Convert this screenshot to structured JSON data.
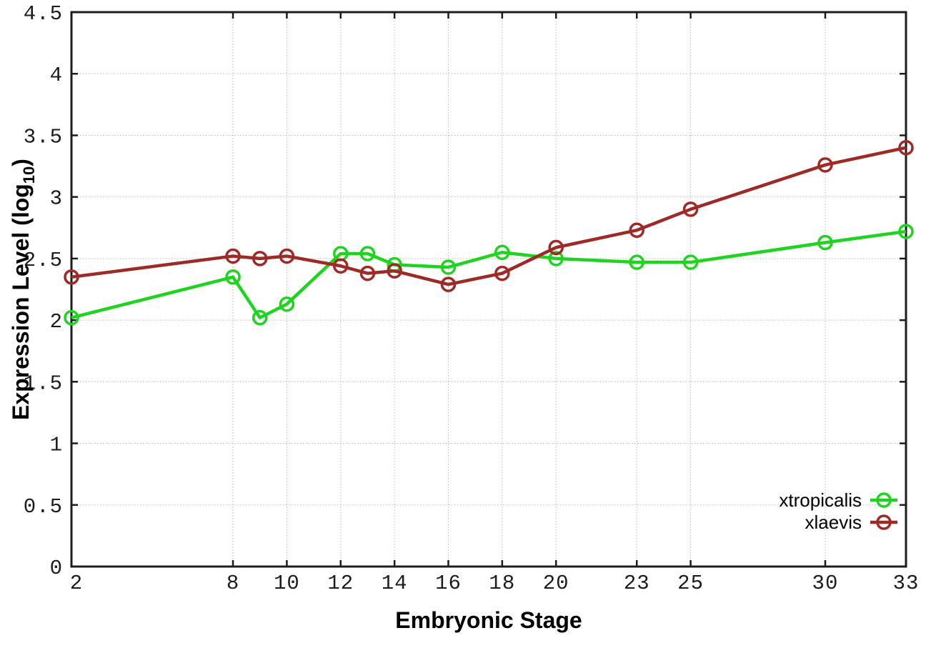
{
  "page": {
    "background": "#ffffff"
  },
  "style": {
    "axis_color": "#1c1c1c",
    "grid_color": "#b8b8b8",
    "tick_label_color": "#1c1c1c"
  },
  "chart_data": {
    "type": "line",
    "title": "",
    "xlabel": "Embryonic Stage",
    "ylabel": {
      "prefix": "Expression Level (log",
      "sub": "10",
      "suffix": ")"
    },
    "xlim": [
      2,
      33
    ],
    "ylim": [
      0,
      4.5
    ],
    "grid": true,
    "legend_position": "bottom-right",
    "x_ticks": [
      {
        "v": 2,
        "label": "2"
      },
      {
        "v": 8,
        "label": "8"
      },
      {
        "v": 10,
        "label": "10"
      },
      {
        "v": 12,
        "label": "12"
      },
      {
        "v": 14,
        "label": "14"
      },
      {
        "v": 16,
        "label": "16"
      },
      {
        "v": 18,
        "label": "18"
      },
      {
        "v": 20,
        "label": "20"
      },
      {
        "v": 23,
        "label": "23"
      },
      {
        "v": 25,
        "label": "25"
      },
      {
        "v": 30,
        "label": "30"
      },
      {
        "v": 33,
        "label": "33"
      }
    ],
    "y_ticks": [
      {
        "v": 0,
        "label": "0"
      },
      {
        "v": 0.5,
        "label": "0.5"
      },
      {
        "v": 1,
        "label": "1"
      },
      {
        "v": 1.5,
        "label": "1.5"
      },
      {
        "v": 2,
        "label": "2"
      },
      {
        "v": 2.5,
        "label": "2.5"
      },
      {
        "v": 3,
        "label": "3"
      },
      {
        "v": 3.5,
        "label": "3.5"
      },
      {
        "v": 4,
        "label": "4"
      },
      {
        "v": 4.5,
        "label": "4.5"
      }
    ],
    "x": [
      2,
      8,
      9,
      10,
      12,
      13,
      14,
      16,
      18,
      20,
      23,
      25,
      30,
      33
    ],
    "series": [
      {
        "name": "xtropicalis",
        "color": "#1fd41f",
        "marker": "open-circle",
        "values": [
          2.02,
          2.35,
          2.02,
          2.13,
          2.54,
          2.54,
          2.45,
          2.43,
          2.55,
          2.5,
          2.47,
          2.47,
          2.63,
          2.72
        ]
      },
      {
        "name": "xlaevis",
        "color": "#9e2a25",
        "marker": "open-circle",
        "values": [
          2.35,
          2.52,
          2.5,
          2.52,
          2.44,
          2.38,
          2.4,
          2.29,
          2.38,
          2.59,
          2.73,
          2.9,
          3.26,
          3.4
        ]
      }
    ],
    "legend_entries": [
      "xtropicalis",
      "xlaevis"
    ]
  }
}
